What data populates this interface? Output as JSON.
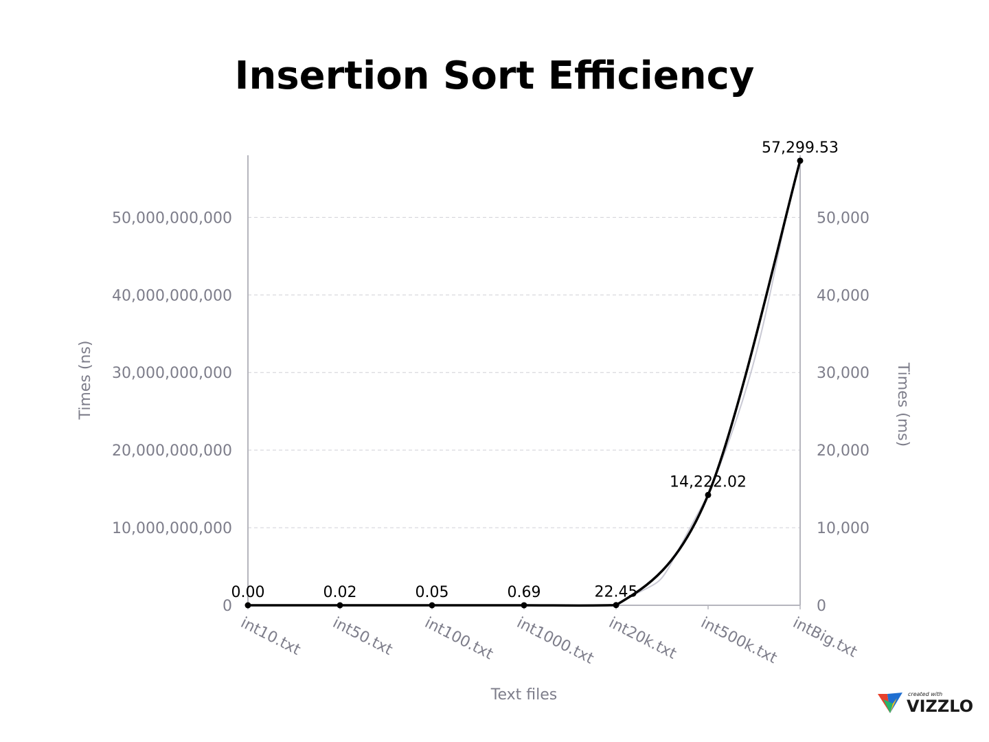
{
  "chart_data": {
    "type": "line",
    "title": "Insertion Sort Efficiency",
    "xlabel": "Text files",
    "ylabel_left": "Times (ns)",
    "ylabel_right": "Times (ms)",
    "categories": [
      "int10.txt",
      "int50.txt",
      "int100.txt",
      "int1000.txt",
      "int20k.txt",
      "int500k.txt",
      "intBig.txt"
    ],
    "left_axis": {
      "range": [
        0,
        58000000000
      ],
      "ticks": [
        0,
        10000000000,
        20000000000,
        30000000000,
        40000000000,
        50000000000
      ],
      "tick_labels": [
        "0",
        "10,000,000,000",
        "20,000,000,000",
        "30,000,000,000",
        "40,000,000,000",
        "50,000,000,000"
      ]
    },
    "right_axis": {
      "range": [
        0,
        58000
      ],
      "ticks": [
        0,
        10000,
        20000,
        30000,
        40000,
        50000
      ],
      "tick_labels": [
        "0",
        "10,000",
        "20,000",
        "30,000",
        "40,000",
        "50,000"
      ]
    },
    "series": [
      {
        "axis": "left",
        "color": "#c9c9d4",
        "values": [
          2000,
          20000,
          50000,
          690000,
          22450000,
          14222020000,
          57299530000
        ]
      },
      {
        "axis": "right",
        "color": "#000000",
        "values": [
          0.0,
          0.02,
          0.05,
          0.69,
          22.45,
          14222.02,
          57299.53
        ],
        "data_labels": [
          "0.00",
          "0.02",
          "0.05",
          "0.69",
          "22.45",
          "14,222.02",
          "57,299.53"
        ]
      }
    ],
    "grid": true,
    "legend": "none"
  },
  "branding": {
    "small_text": "created with",
    "name": "VIZZLO"
  }
}
